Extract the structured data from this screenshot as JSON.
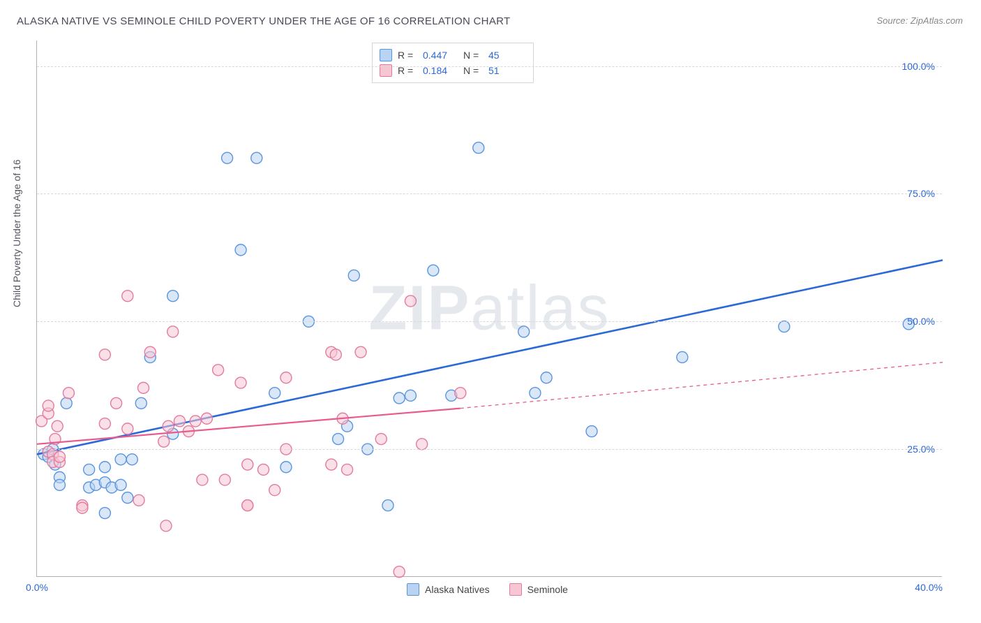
{
  "title": "ALASKA NATIVE VS SEMINOLE CHILD POVERTY UNDER THE AGE OF 16 CORRELATION CHART",
  "source": "Source: ZipAtlas.com",
  "y_axis_label": "Child Poverty Under the Age of 16",
  "watermark_bold": "ZIP",
  "watermark_light": "atlas",
  "legend_top": {
    "rows": [
      {
        "swatch_fill": "#b9d4f3",
        "swatch_border": "#5a95e0",
        "r_label": "R =",
        "r_value": "0.447",
        "n_label": "N =",
        "n_value": "45"
      },
      {
        "swatch_fill": "#f7c6d3",
        "swatch_border": "#e37ba0",
        "r_label": "R =",
        "r_value": "0.184",
        "n_label": "N =",
        "n_value": "51"
      }
    ]
  },
  "legend_bottom": {
    "items": [
      {
        "swatch_fill": "#b9d4f3",
        "swatch_border": "#5a95e0",
        "label": "Alaska Natives"
      },
      {
        "swatch_fill": "#f7c6d3",
        "swatch_border": "#e37ba0",
        "label": "Seminole"
      }
    ]
  },
  "chart": {
    "type": "scatter",
    "xlim": [
      0,
      40
    ],
    "ylim": [
      0,
      105
    ],
    "x_ticks": [
      0,
      40
    ],
    "x_tick_labels": [
      "0.0%",
      "40.0%"
    ],
    "y_ticks": [
      25,
      50,
      75,
      100
    ],
    "y_tick_labels": [
      "25.0%",
      "50.0%",
      "75.0%",
      "100.0%"
    ],
    "marker_radius": 8,
    "marker_opacity": 0.55,
    "marker_stroke_width": 1.4,
    "background_color": "#ffffff",
    "grid_color": "#d8d8d8",
    "series": [
      {
        "name": "Alaska Natives",
        "fill": "#b9d4f3",
        "stroke": "#5a95e0",
        "points": [
          [
            0.3,
            24
          ],
          [
            0.5,
            23.5
          ],
          [
            0.7,
            25
          ],
          [
            0.8,
            22
          ],
          [
            1,
            19.5
          ],
          [
            1,
            18
          ],
          [
            1.3,
            34
          ],
          [
            2.3,
            21
          ],
          [
            2.3,
            17.5
          ],
          [
            2.6,
            18
          ],
          [
            3,
            12.5
          ],
          [
            3,
            18.5
          ],
          [
            3,
            21.5
          ],
          [
            3.3,
            17.5
          ],
          [
            3.7,
            18
          ],
          [
            3.7,
            23
          ],
          [
            4,
            15.5
          ],
          [
            4.2,
            23
          ],
          [
            4.6,
            34
          ],
          [
            5,
            43
          ],
          [
            6,
            28
          ],
          [
            6,
            55
          ],
          [
            8.4,
            82
          ],
          [
            9.7,
            82
          ],
          [
            9,
            64
          ],
          [
            10.5,
            36
          ],
          [
            11,
            21.5
          ],
          [
            12,
            50
          ],
          [
            13.3,
            27
          ],
          [
            13.7,
            29.5
          ],
          [
            14,
            59
          ],
          [
            14.6,
            25
          ],
          [
            15.5,
            14
          ],
          [
            16,
            35
          ],
          [
            16.5,
            35.5
          ],
          [
            17.5,
            60
          ],
          [
            18.3,
            35.5
          ],
          [
            19.5,
            84
          ],
          [
            21.5,
            48
          ],
          [
            22,
            36
          ],
          [
            22.5,
            39
          ],
          [
            24.5,
            28.5
          ],
          [
            28.5,
            43
          ],
          [
            33,
            49
          ],
          [
            38.5,
            49.5
          ]
        ],
        "trend": {
          "color": "#2b68d8",
          "width": 2.6,
          "x1": 0,
          "y1": 24,
          "x2": 40,
          "y2": 62,
          "dashed": false
        }
      },
      {
        "name": "Seminole",
        "fill": "#f7c6d3",
        "stroke": "#e37ba0",
        "points": [
          [
            0.2,
            30.5
          ],
          [
            0.5,
            32
          ],
          [
            0.5,
            24.5
          ],
          [
            0.5,
            33.5
          ],
          [
            0.7,
            24
          ],
          [
            0.7,
            22.5
          ],
          [
            0.8,
            27
          ],
          [
            0.9,
            29.5
          ],
          [
            1,
            22.5
          ],
          [
            1,
            23.5
          ],
          [
            1.4,
            36
          ],
          [
            2,
            14
          ],
          [
            2,
            13.5
          ],
          [
            3,
            30
          ],
          [
            3,
            43.5
          ],
          [
            3.5,
            34
          ],
          [
            4,
            55
          ],
          [
            4,
            29
          ],
          [
            4.5,
            15
          ],
          [
            4.7,
            37
          ],
          [
            5,
            44
          ],
          [
            5.6,
            26.5
          ],
          [
            5.7,
            10
          ],
          [
            5.8,
            29.5
          ],
          [
            6,
            48
          ],
          [
            6.3,
            30.5
          ],
          [
            6.7,
            28.5
          ],
          [
            7,
            30.5
          ],
          [
            7.3,
            19
          ],
          [
            7.5,
            31
          ],
          [
            8,
            40.5
          ],
          [
            8.3,
            19
          ],
          [
            9,
            38
          ],
          [
            9.3,
            14
          ],
          [
            9.3,
            14
          ],
          [
            9.3,
            22
          ],
          [
            10,
            21
          ],
          [
            10.5,
            17
          ],
          [
            11,
            25
          ],
          [
            11,
            39
          ],
          [
            13,
            22
          ],
          [
            13,
            44
          ],
          [
            13.2,
            43.5
          ],
          [
            13.5,
            31
          ],
          [
            13.7,
            21
          ],
          [
            14.3,
            44
          ],
          [
            15.2,
            27
          ],
          [
            16,
            1
          ],
          [
            16.5,
            54
          ],
          [
            17,
            26
          ],
          [
            18.7,
            36
          ]
        ],
        "trend": {
          "color": "#e85b8f",
          "width": 2.2,
          "x1": 0,
          "y1": 26,
          "x2": 18.7,
          "y2": 33,
          "dashed": false,
          "extension": {
            "x1": 18.7,
            "y1": 33,
            "x2": 40,
            "y2": 42,
            "dashed": true
          }
        }
      }
    ]
  }
}
